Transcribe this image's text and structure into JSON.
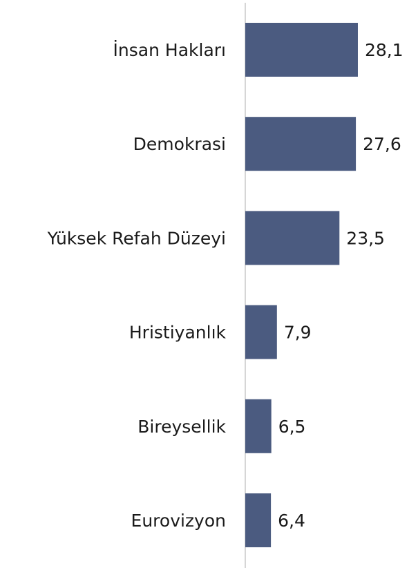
{
  "chart_data": {
    "type": "bar",
    "orientation": "horizontal",
    "categories": [
      "İnsan Hakları",
      "Demokrasi",
      "Yüksek Refah Düzeyi",
      "Hristiyanlık",
      "Bireysellik",
      "Eurovizyon"
    ],
    "values": [
      28.1,
      27.6,
      23.5,
      7.9,
      6.5,
      6.4
    ],
    "value_labels": [
      "28,1",
      "27,6",
      "23,5",
      "7,9",
      "6,5",
      "6,4"
    ],
    "color": "#4b5b80"
  }
}
